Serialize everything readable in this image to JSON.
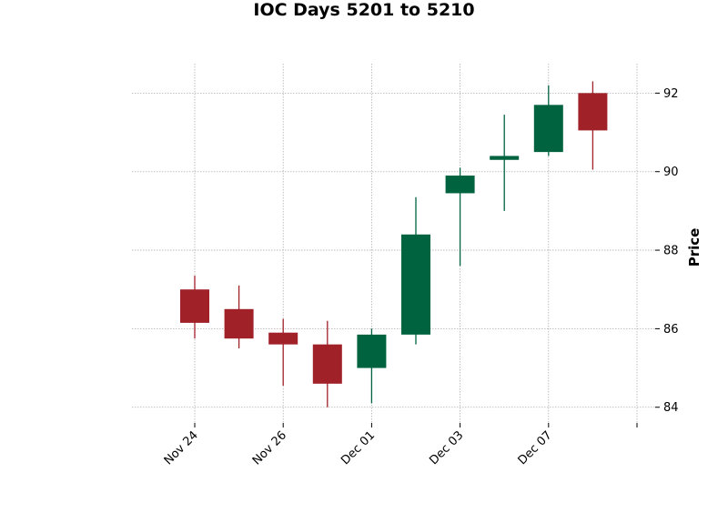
{
  "chart_data": {
    "type": "candlestick",
    "title": "IOC Days 5201 to 5210",
    "ylabel": "Price",
    "xlabel": "",
    "ylim": [
      83.6,
      92.75
    ],
    "y_ticks": [
      84,
      86,
      88,
      90,
      92
    ],
    "grid": true,
    "grid_style": "dotted",
    "up_color": "#006340",
    "down_color": "#a02128",
    "x_tick_labels": [
      {
        "index": 0,
        "label": "Nov 24"
      },
      {
        "index": 2,
        "label": "Nov 26"
      },
      {
        "index": 4,
        "label": "Dec 01"
      },
      {
        "index": 6,
        "label": "Dec 03"
      },
      {
        "index": 8,
        "label": "Dec 07"
      },
      {
        "index": 10,
        "label": ""
      }
    ],
    "candles": [
      {
        "open": 87.0,
        "high": 87.35,
        "low": 85.75,
        "close": 86.15
      },
      {
        "open": 86.5,
        "high": 87.1,
        "low": 85.5,
        "close": 85.75
      },
      {
        "open": 85.9,
        "high": 86.25,
        "low": 84.55,
        "close": 85.6
      },
      {
        "open": 85.6,
        "high": 86.2,
        "low": 84.0,
        "close": 84.6
      },
      {
        "open": 85.0,
        "high": 86.0,
        "low": 84.1,
        "close": 85.85
      },
      {
        "open": 85.85,
        "high": 89.35,
        "low": 85.6,
        "close": 88.4
      },
      {
        "open": 89.45,
        "high": 90.1,
        "low": 87.6,
        "close": 89.9
      },
      {
        "open": 90.3,
        "high": 91.45,
        "low": 89.0,
        "close": 90.4
      },
      {
        "open": 90.5,
        "high": 92.2,
        "low": 90.4,
        "close": 91.7
      },
      {
        "open": 92.0,
        "high": 92.3,
        "low": 90.05,
        "close": 91.05
      }
    ]
  }
}
